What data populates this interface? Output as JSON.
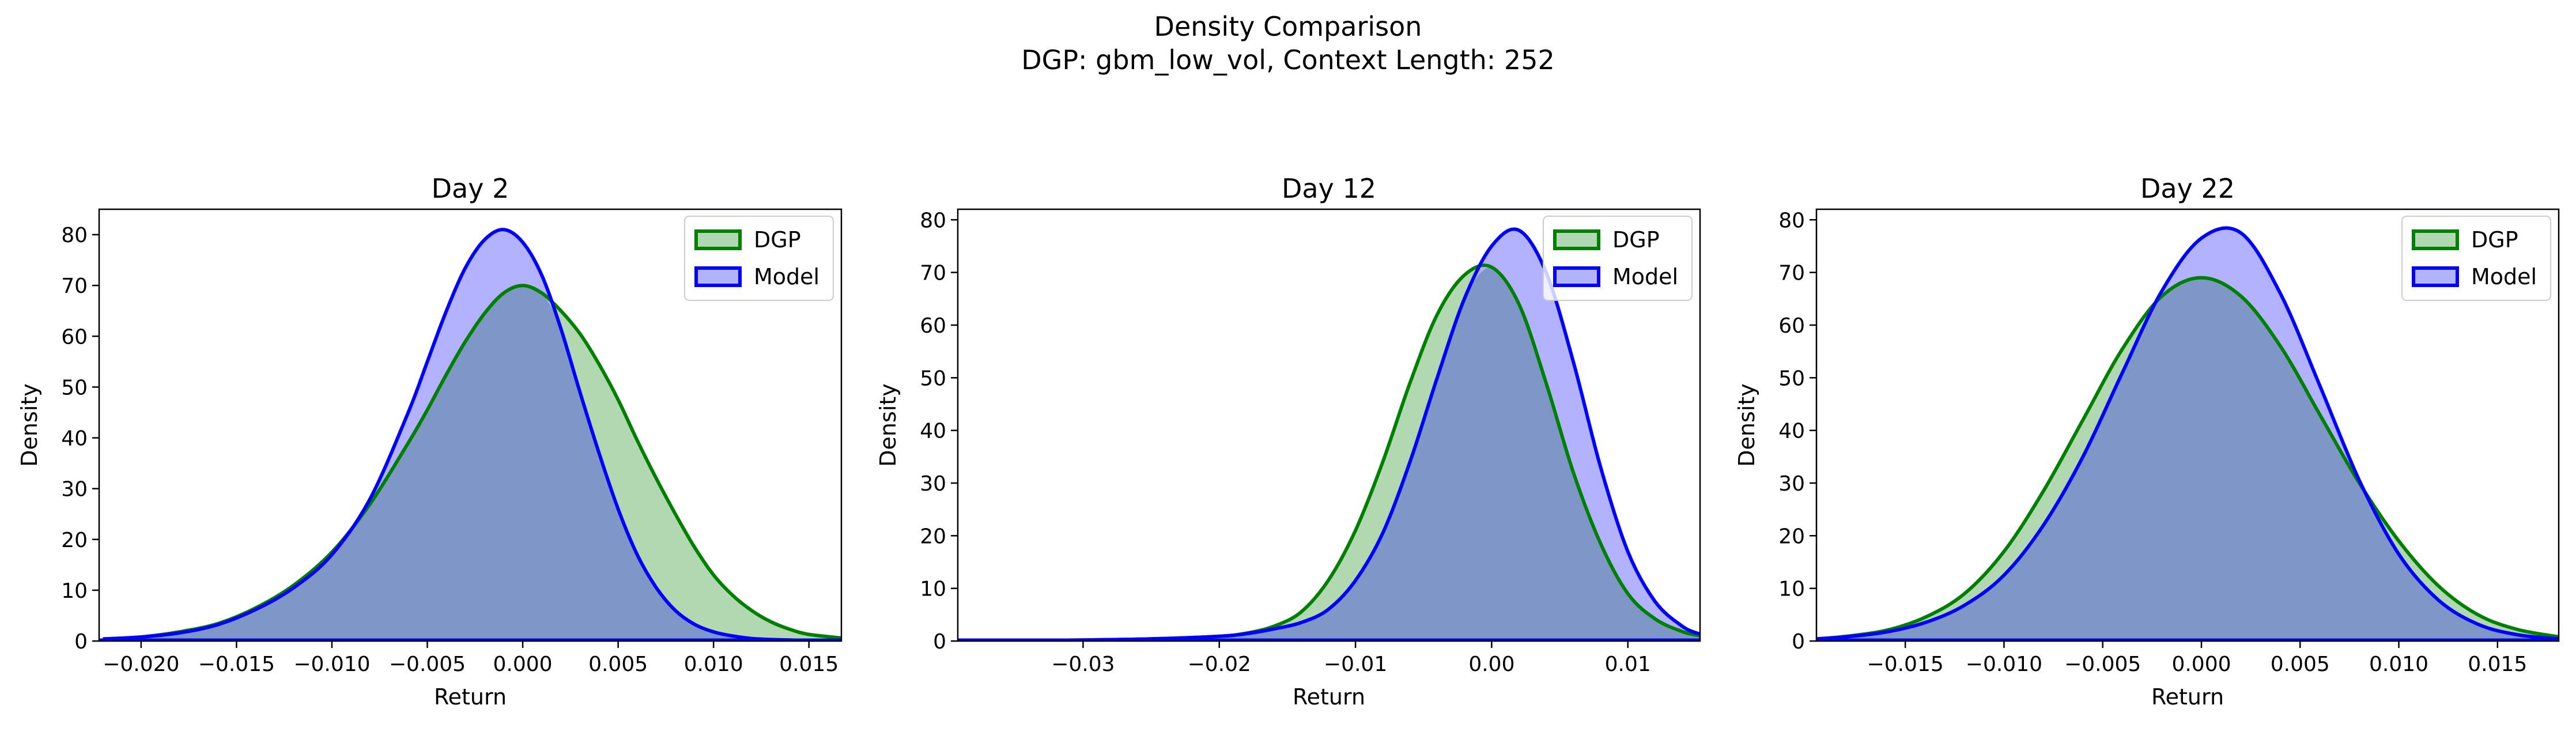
{
  "figure": {
    "title_line1": "Density Comparison",
    "title_line2": "DGP: gbm_low_vol, Context Length: 252"
  },
  "colors": {
    "dgp_line": "#008000",
    "dgp_fill": "#b2d8b2",
    "model_line": "#0000ff",
    "model_fill": "#b2b2ff",
    "overlap_fill": "#7e97c6"
  },
  "chart_data": [
    {
      "type": "area",
      "title": "Day 2",
      "xlabel": "Return",
      "ylabel": "Density",
      "xlim": [
        -0.0222,
        0.0167
      ],
      "ylim": [
        0,
        85
      ],
      "x_ticks": [
        -0.02,
        -0.015,
        -0.01,
        -0.005,
        0.0,
        0.005,
        0.01,
        0.015
      ],
      "x_tick_labels": [
        "−0.020",
        "−0.015",
        "−0.010",
        "−0.005",
        "0.000",
        "0.005",
        "0.010",
        "0.015"
      ],
      "y_ticks": [
        0,
        10,
        20,
        30,
        40,
        50,
        60,
        70,
        80
      ],
      "y_tick_labels": [
        "0",
        "10",
        "20",
        "30",
        "40",
        "50",
        "60",
        "70",
        "80"
      ],
      "legend": "top-right",
      "grid": false,
      "series": [
        {
          "name": "DGP",
          "x": [
            -0.022,
            -0.02,
            -0.018,
            -0.016,
            -0.014,
            -0.012,
            -0.01,
            -0.008,
            -0.006,
            -0.005,
            -0.004,
            -0.003,
            -0.002,
            -0.001,
            0.0,
            0.001,
            0.002,
            0.003,
            0.004,
            0.005,
            0.006,
            0.007,
            0.008,
            0.009,
            0.01,
            0.011,
            0.012,
            0.013,
            0.014,
            0.015,
            0.0167
          ],
          "y": [
            0.4,
            0.8,
            1.8,
            3.4,
            6.5,
            11.0,
            17.5,
            27.0,
            39.0,
            45.5,
            52.5,
            59.0,
            64.5,
            68.5,
            70.0,
            68.5,
            65.0,
            60.5,
            54.5,
            47.5,
            39.5,
            32.0,
            25.0,
            18.5,
            13.0,
            9.0,
            6.0,
            3.8,
            2.3,
            1.3,
            0.6
          ]
        },
        {
          "name": "Model",
          "x": [
            -0.022,
            -0.02,
            -0.018,
            -0.016,
            -0.014,
            -0.012,
            -0.01,
            -0.008,
            -0.006,
            -0.005,
            -0.004,
            -0.003,
            -0.002,
            -0.001,
            0.0,
            0.001,
            0.002,
            0.003,
            0.004,
            0.005,
            0.006,
            0.007,
            0.008,
            0.009,
            0.01,
            0.011,
            0.012,
            0.013,
            0.014,
            0.015,
            0.0167
          ],
          "y": [
            0.4,
            0.8,
            1.6,
            3.2,
            6.2,
            10.5,
            17.0,
            28.0,
            45.0,
            55.0,
            65.0,
            73.5,
            79.0,
            81.0,
            78.5,
            72.0,
            61.5,
            49.0,
            37.0,
            26.0,
            17.0,
            10.5,
            6.0,
            3.3,
            1.8,
            1.0,
            0.5,
            0.3,
            0.2,
            0.1,
            0.05
          ]
        }
      ]
    },
    {
      "type": "area",
      "title": "Day 12",
      "xlabel": "Return",
      "ylabel": "Density",
      "xlim": [
        -0.0392,
        0.0153
      ],
      "ylim": [
        0,
        82
      ],
      "x_ticks": [
        -0.03,
        -0.02,
        -0.01,
        0.0,
        0.01
      ],
      "x_tick_labels": [
        "−0.03",
        "−0.02",
        "−0.01",
        "0.00",
        "0.01"
      ],
      "y_ticks": [
        0,
        10,
        20,
        30,
        40,
        50,
        60,
        70,
        80
      ],
      "y_tick_labels": [
        "0",
        "10",
        "20",
        "30",
        "40",
        "50",
        "60",
        "70",
        "80"
      ],
      "legend": "top-right",
      "grid": false,
      "series": [
        {
          "name": "DGP",
          "x": [
            -0.039,
            -0.035,
            -0.03,
            -0.025,
            -0.02,
            -0.018,
            -0.016,
            -0.014,
            -0.012,
            -0.01,
            -0.008,
            -0.006,
            -0.004,
            -0.002,
            0.0,
            0.002,
            0.004,
            0.006,
            0.008,
            0.01,
            0.012,
            0.014,
            0.0153
          ],
          "y": [
            0.05,
            0.1,
            0.2,
            0.4,
            0.9,
            1.5,
            2.8,
            5.5,
            11.5,
            21.0,
            34.0,
            49.0,
            62.0,
            69.5,
            71.0,
            64.0,
            49.0,
            32.0,
            18.5,
            9.0,
            4.2,
            1.8,
            1.0
          ]
        },
        {
          "name": "Model",
          "x": [
            -0.039,
            -0.035,
            -0.03,
            -0.025,
            -0.02,
            -0.018,
            -0.016,
            -0.014,
            -0.012,
            -0.01,
            -0.008,
            -0.006,
            -0.004,
            -0.002,
            0.0,
            0.002,
            0.004,
            0.006,
            0.008,
            0.01,
            0.012,
            0.014,
            0.0153
          ],
          "y": [
            0.05,
            0.1,
            0.2,
            0.4,
            0.9,
            1.4,
            2.3,
            3.5,
            6.0,
            11.5,
            20.5,
            34.0,
            50.0,
            65.0,
            75.0,
            78.0,
            70.0,
            53.0,
            33.0,
            17.0,
            7.5,
            2.8,
            1.3
          ]
        }
      ]
    },
    {
      "type": "area",
      "title": "Day 22",
      "xlabel": "Return",
      "ylabel": "Density",
      "xlim": [
        -0.0195,
        0.0181
      ],
      "ylim": [
        0,
        82
      ],
      "x_ticks": [
        -0.015,
        -0.01,
        -0.005,
        0.0,
        0.005,
        0.01,
        0.015
      ],
      "x_tick_labels": [
        "−0.015",
        "−0.010",
        "−0.005",
        "0.000",
        "0.005",
        "0.010",
        "0.015"
      ],
      "y_ticks": [
        0,
        10,
        20,
        30,
        40,
        50,
        60,
        70,
        80
      ],
      "y_tick_labels": [
        "0",
        "10",
        "20",
        "30",
        "40",
        "50",
        "60",
        "70",
        "80"
      ],
      "legend": "top-right",
      "grid": false,
      "series": [
        {
          "name": "DGP",
          "x": [
            -0.0195,
            -0.018,
            -0.016,
            -0.014,
            -0.012,
            -0.01,
            -0.008,
            -0.006,
            -0.004,
            -0.002,
            0.0,
            0.002,
            0.004,
            0.006,
            0.008,
            0.01,
            0.012,
            0.014,
            0.016,
            0.0181
          ],
          "y": [
            0.4,
            0.9,
            2.0,
            4.5,
            9.0,
            17.0,
            28.5,
            42.0,
            55.5,
            65.5,
            69.0,
            65.5,
            56.0,
            43.0,
            30.0,
            19.0,
            10.5,
            5.0,
            2.2,
            0.8
          ]
        },
        {
          "name": "Model",
          "x": [
            -0.0195,
            -0.018,
            -0.016,
            -0.014,
            -0.012,
            -0.01,
            -0.008,
            -0.006,
            -0.004,
            -0.002,
            0.0,
            0.002,
            0.004,
            0.006,
            0.008,
            0.01,
            0.012,
            0.014,
            0.016,
            0.0181
          ],
          "y": [
            0.4,
            0.8,
            1.7,
            3.5,
            6.8,
            12.5,
            22.0,
            35.0,
            51.0,
            66.5,
            76.5,
            77.5,
            66.0,
            48.5,
            30.5,
            16.5,
            7.8,
            3.2,
            1.2,
            0.4
          ]
        }
      ]
    }
  ]
}
